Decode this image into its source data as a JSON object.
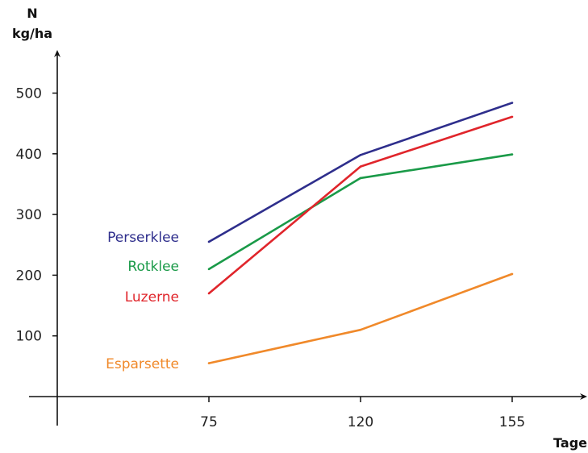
{
  "chart_data": {
    "type": "line",
    "x": [
      75,
      120,
      155
    ],
    "x_tick_labels": [
      "75",
      "120",
      "155"
    ],
    "y_ticks": [
      100,
      200,
      300,
      400,
      500
    ],
    "y_tick_labels": [
      "100",
      "200",
      "300",
      "400",
      "500"
    ],
    "xlabel": "Tage",
    "ylabel_line1": "N",
    "ylabel_line2": "kg/ha",
    "ylim": [
      0,
      500
    ],
    "grid": false,
    "legend": "inline-left",
    "series": [
      {
        "name": "Perserklee",
        "values": [
          255,
          398,
          484
        ],
        "color": "#2e2e8c"
      },
      {
        "name": "Rotklee",
        "values": [
          210,
          360,
          399
        ],
        "color": "#1a9a48"
      },
      {
        "name": "Luzerne",
        "values": [
          170,
          379,
          461
        ],
        "color": "#e0252b"
      },
      {
        "name": "Esparsette",
        "values": [
          55,
          110,
          202
        ],
        "color": "#f0892a"
      }
    ]
  }
}
